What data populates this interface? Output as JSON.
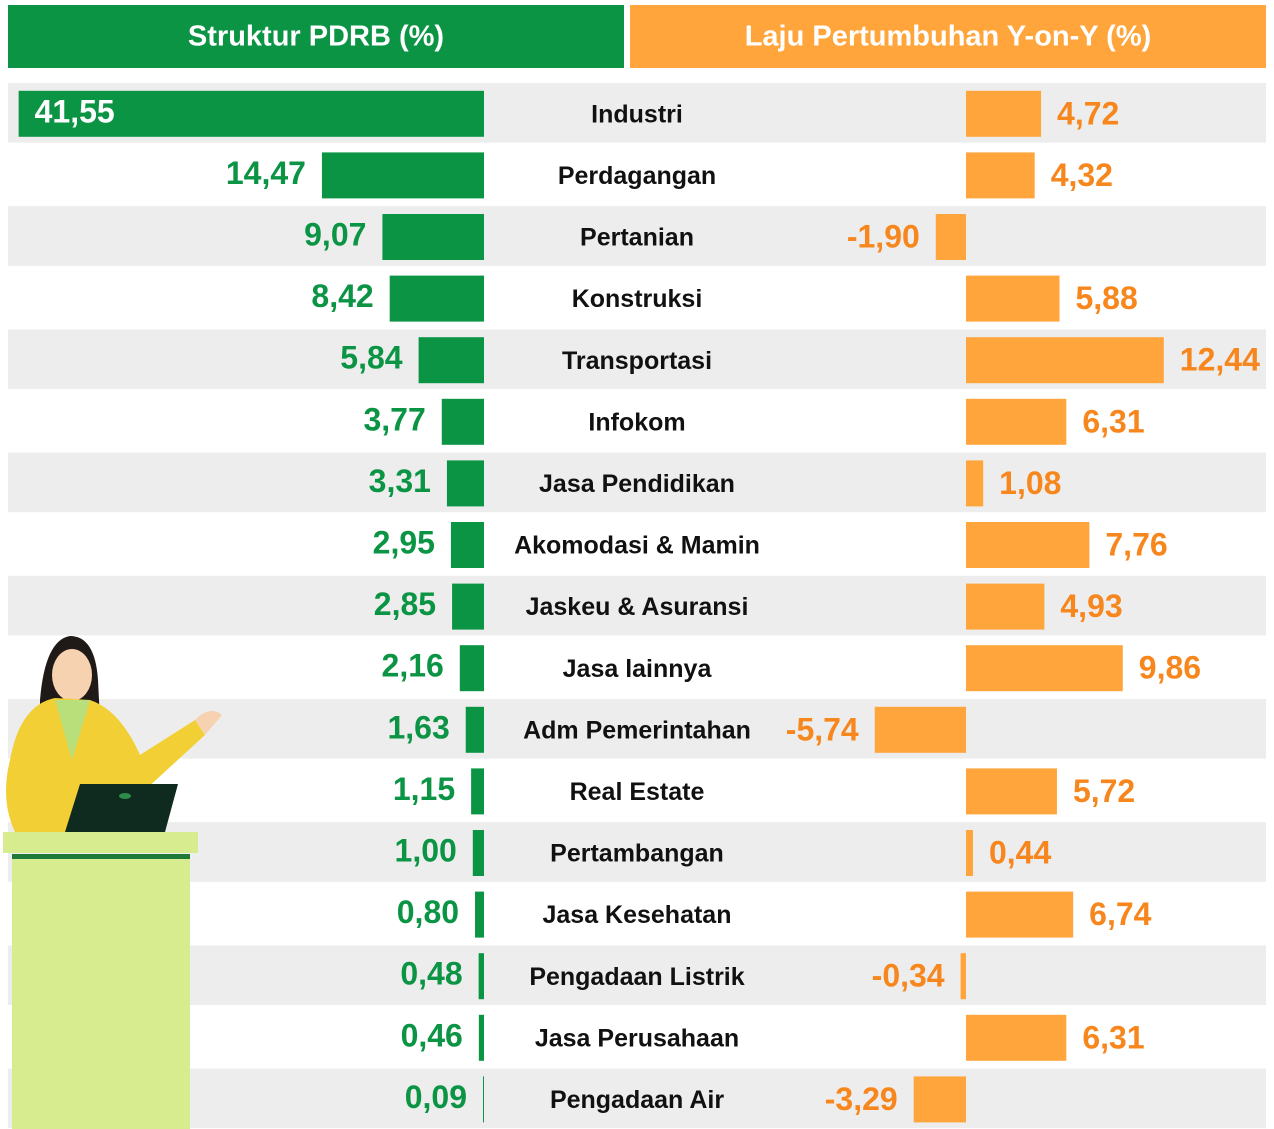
{
  "chart_data": [
    {
      "type": "bar",
      "title": "Struktur PDRB (%)",
      "color": "#0a9444",
      "categories": [
        "Industri",
        "Perdagangan",
        "Pertanian",
        "Konstruksi",
        "Transportasi",
        "Infokom",
        "Jasa Pendidikan",
        "Akomodasi & Mamin",
        "Jaskeu & Asuransi",
        "Jasa lainnya",
        "Adm Pemerintahan",
        "Real Estate",
        "Pertambangan",
        "Jasa Kesehatan",
        "Pengadaan Listrik",
        "Jasa Perusahaan",
        "Pengadaan Air"
      ],
      "values": [
        41.55,
        14.47,
        9.07,
        8.42,
        5.84,
        3.77,
        3.31,
        2.95,
        2.85,
        2.16,
        1.63,
        1.15,
        1.0,
        0.8,
        0.48,
        0.46,
        0.09
      ],
      "value_labels": [
        "41,55",
        "14,47",
        "9,07",
        "8,42",
        "5,84",
        "3,77",
        "3,31",
        "2,95",
        "2,85",
        "2,16",
        "1,63",
        "1,15",
        "1,00",
        "0,80",
        "0,48",
        "0,46",
        "0,09"
      ]
    },
    {
      "type": "bar",
      "title": "Laju Pertumbuhan Y-on-Y (%)",
      "color": "#ffa53b",
      "values": [
        4.72,
        4.32,
        -1.9,
        5.88,
        12.44,
        6.31,
        1.08,
        7.76,
        4.93,
        9.86,
        -5.74,
        5.72,
        0.44,
        6.74,
        -0.34,
        6.31,
        -3.29
      ],
      "value_labels": [
        "4,72",
        "4,32",
        "-1,90",
        "5,88",
        "12,44",
        "6,31",
        "1,08",
        "7,76",
        "4,93",
        "9,86",
        "-5,74",
        "5,72",
        "0,44",
        "6,74",
        "-0,34",
        "6,31",
        "-3,29"
      ]
    }
  ]
}
